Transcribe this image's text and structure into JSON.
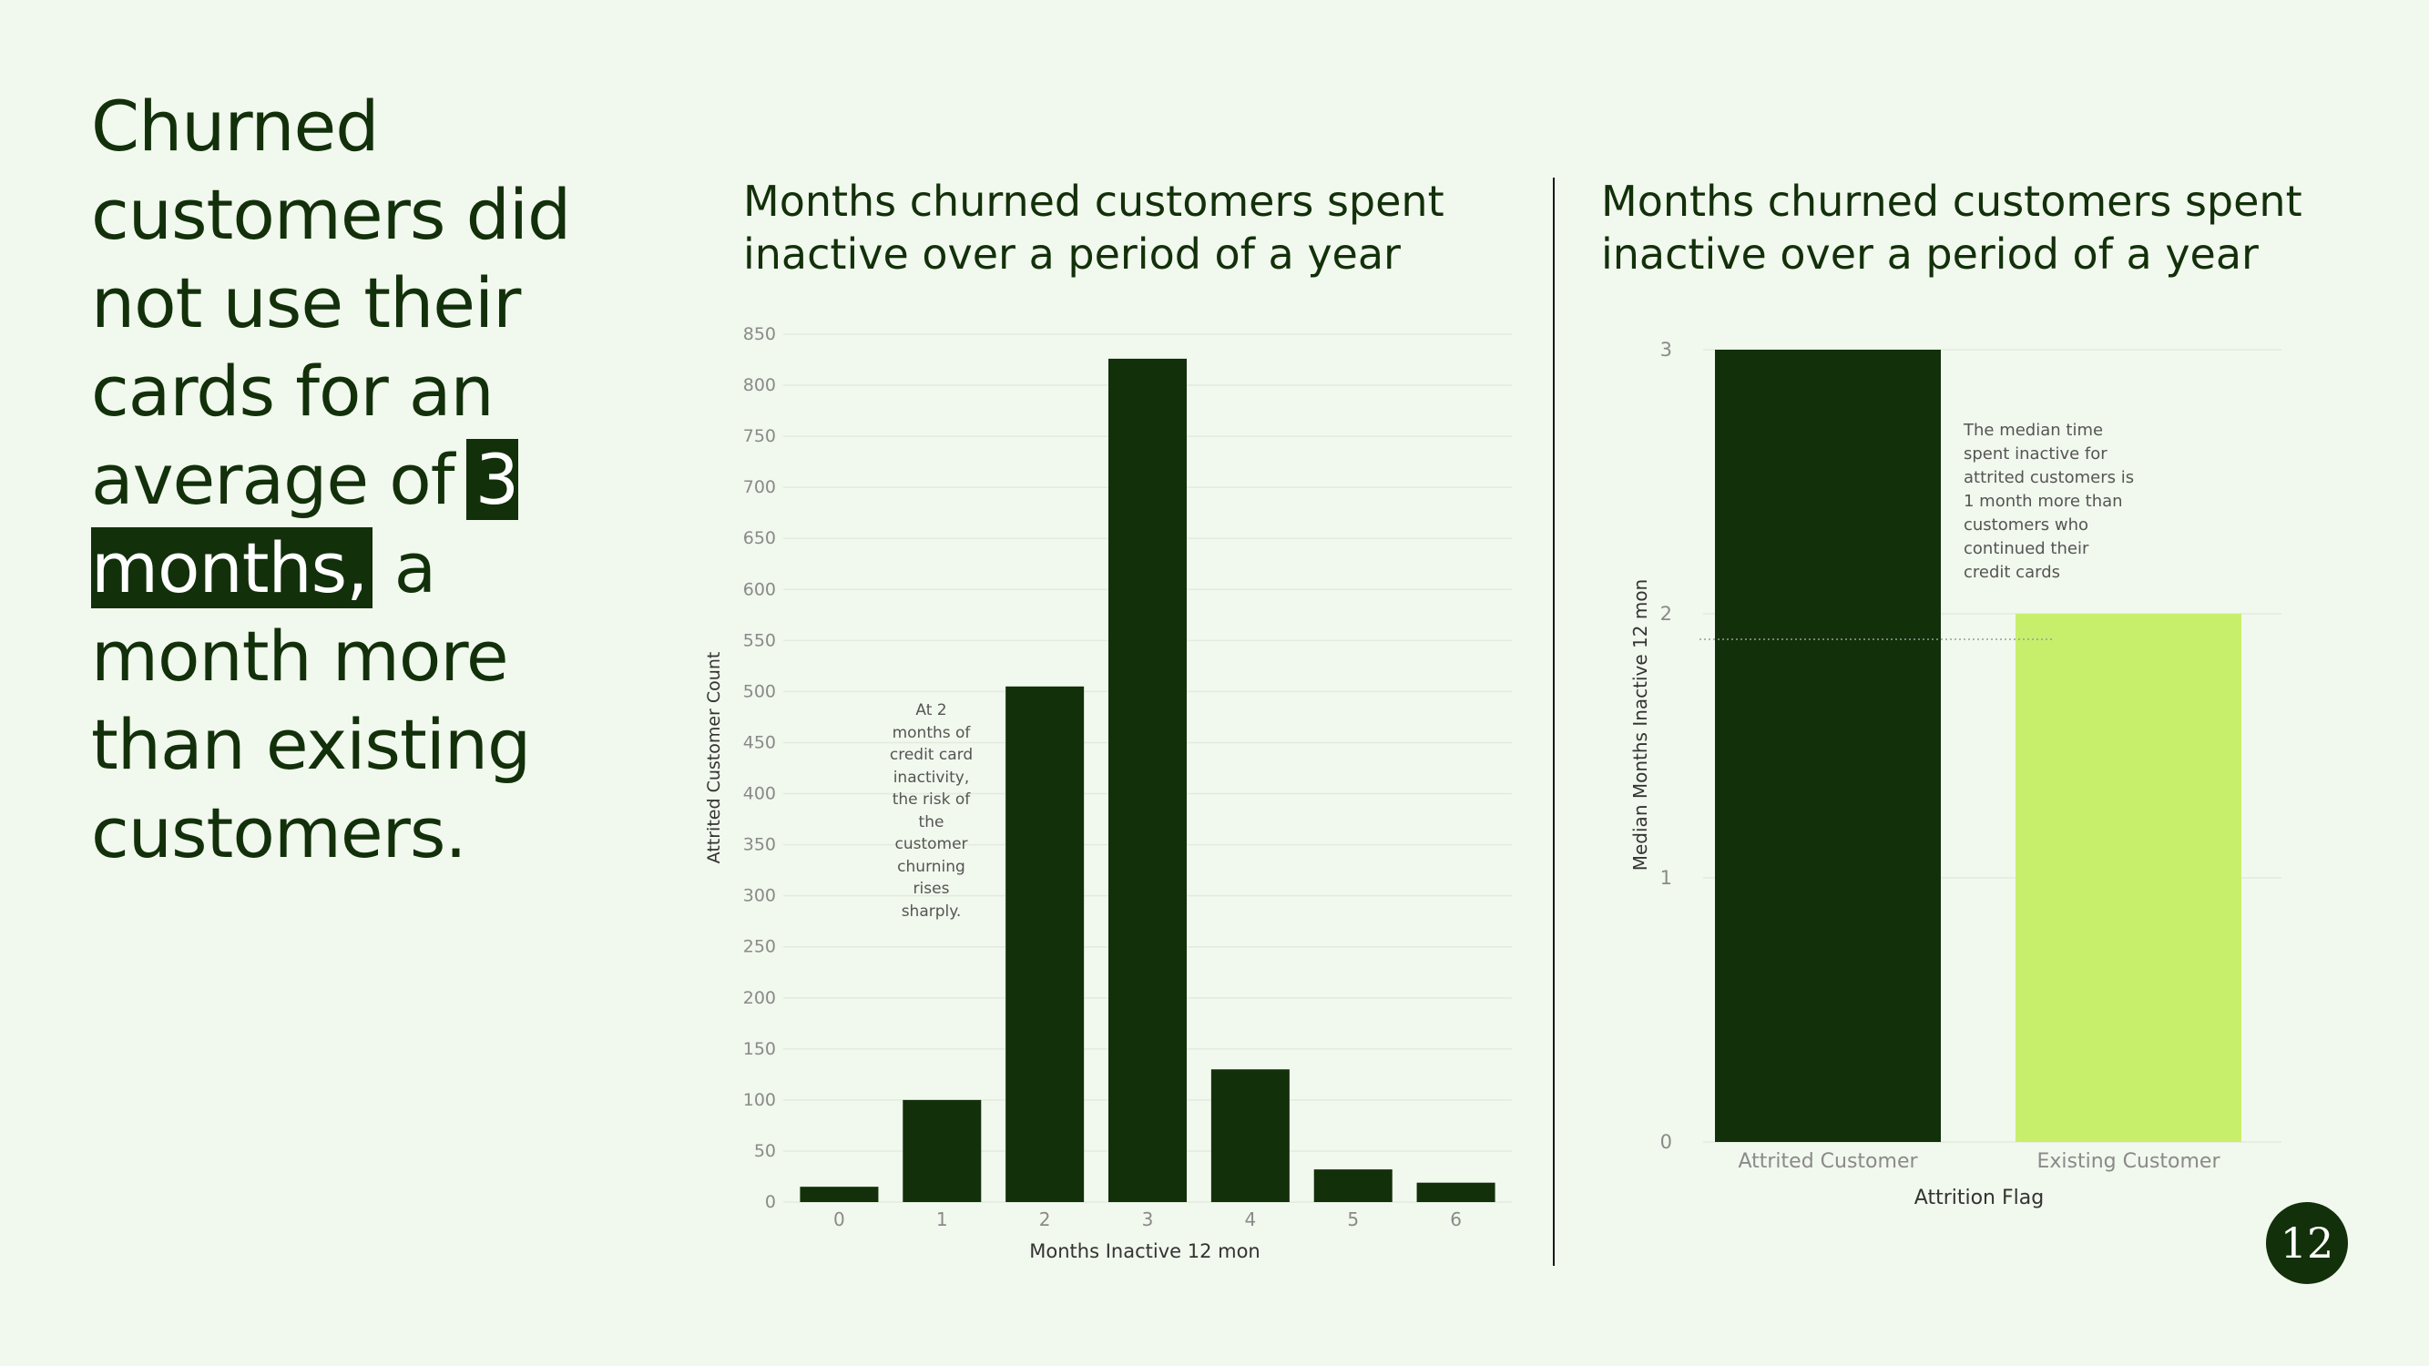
{
  "headline": {
    "before": "Churned customers did not use their cards for an average of",
    "highlight": "3 months,",
    "after": " a month more than existing customers."
  },
  "page_number": "12",
  "colors": {
    "background": "#f1f8ed",
    "dark_green": "#12300a",
    "lime": "#c8ef6c"
  },
  "chart_data": [
    {
      "type": "bar",
      "title": "Months churned customers spent inactive over a period of a year",
      "xlabel": "Months Inactive 12 mon",
      "ylabel": "Attrited Customer Count",
      "categories": [
        "0",
        "1",
        "2",
        "3",
        "4",
        "5",
        "6"
      ],
      "values": [
        15,
        100,
        505,
        826,
        130,
        32,
        19
      ],
      "ylim": [
        0,
        850
      ],
      "yticks": [
        0,
        50,
        100,
        150,
        200,
        250,
        300,
        350,
        400,
        450,
        500,
        550,
        600,
        650,
        700,
        750,
        800,
        850
      ],
      "grid": true,
      "annotation": "At 2\nmonths of\ncredit card\ninactivity,\nthe risk of\nthe\ncustomer\nchurning\nrises\nsharply."
    },
    {
      "type": "bar",
      "title": "Months churned customers spent inactive over a period of a year",
      "xlabel": "Attrition Flag",
      "ylabel": "Median Months Inactive 12 mon",
      "categories": [
        "Attrited Customer",
        "Existing Customer"
      ],
      "values": [
        3,
        2
      ],
      "ylim": [
        0,
        3
      ],
      "yticks": [
        0,
        1,
        2,
        3
      ],
      "grid": true,
      "annotation": "The median time\nspent inactive for\nattrited customers is\n1 month more than\ncustomers who\ncontinued their\ncredit cards"
    }
  ]
}
